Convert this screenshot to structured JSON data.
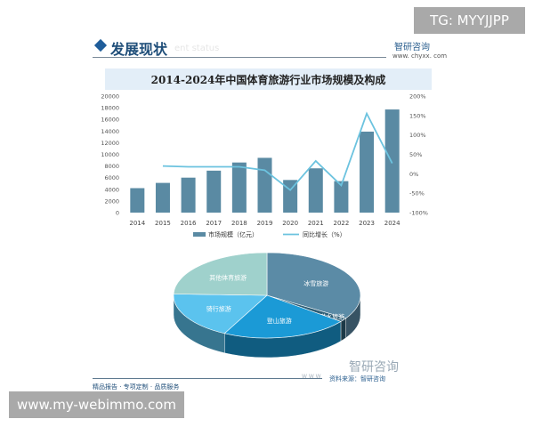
{
  "badges": {
    "tg": "TG: MYYJJPP",
    "site": "www.my-webimmo.com"
  },
  "header": {
    "section": "发展现状",
    "section_en": "ent status",
    "brand": "智研咨询",
    "brand_url": "www. chyxx. com"
  },
  "footer": {
    "slogan": "精品报告 · 专项定制 · 品质服务",
    "source": "资料来源：智研咨询",
    "logo": "智研咨询",
    "www": "W W W"
  },
  "colors": {
    "bar": "#5a8aa3",
    "line": "#6cc3df"
  },
  "chart_data": [
    {
      "type": "bar",
      "title": "2014-2024年中国体育旅游行业市场规模及构成",
      "categories": [
        "2014",
        "2015",
        "2016",
        "2017",
        "2018",
        "2019",
        "2020",
        "2021",
        "2022",
        "2023",
        "2024"
      ],
      "series": [
        {
          "name": "市场规模（亿元）",
          "type": "bar",
          "axis": "left",
          "values": [
            4200,
            5100,
            6000,
            7200,
            8600,
            9400,
            5600,
            7600,
            5400,
            13900,
            17700
          ]
        },
        {
          "name": "同比增长（%）",
          "type": "line",
          "axis": "right",
          "values": [
            null,
            20,
            18,
            18,
            18,
            9,
            -42,
            33,
            -30,
            155,
            27
          ]
        }
      ],
      "ylim": [
        0,
        20000
      ],
      "yticks": [
        "0",
        "2000",
        "4000",
        "6000",
        "8000",
        "10000",
        "12000",
        "14000",
        "16000",
        "18000",
        "20000"
      ],
      "y2lim": [
        -100,
        200
      ],
      "y2ticks": [
        "-100%",
        "-50%",
        "0%",
        "50%",
        "100%",
        "150%",
        "200%"
      ],
      "legend": "bottom"
    },
    {
      "type": "pie",
      "labels": [
        "冰雪旅游",
        "潜水旅游",
        "登山旅游",
        "骑行旅游",
        "其他体育旅游"
      ],
      "values": [
        34,
        1.5,
        22,
        18,
        24.5
      ],
      "colors": [
        "#5b8ba6",
        "#2f5f77",
        "#1b9ad6",
        "#5bc3ee",
        "#9fd1cc"
      ]
    }
  ]
}
